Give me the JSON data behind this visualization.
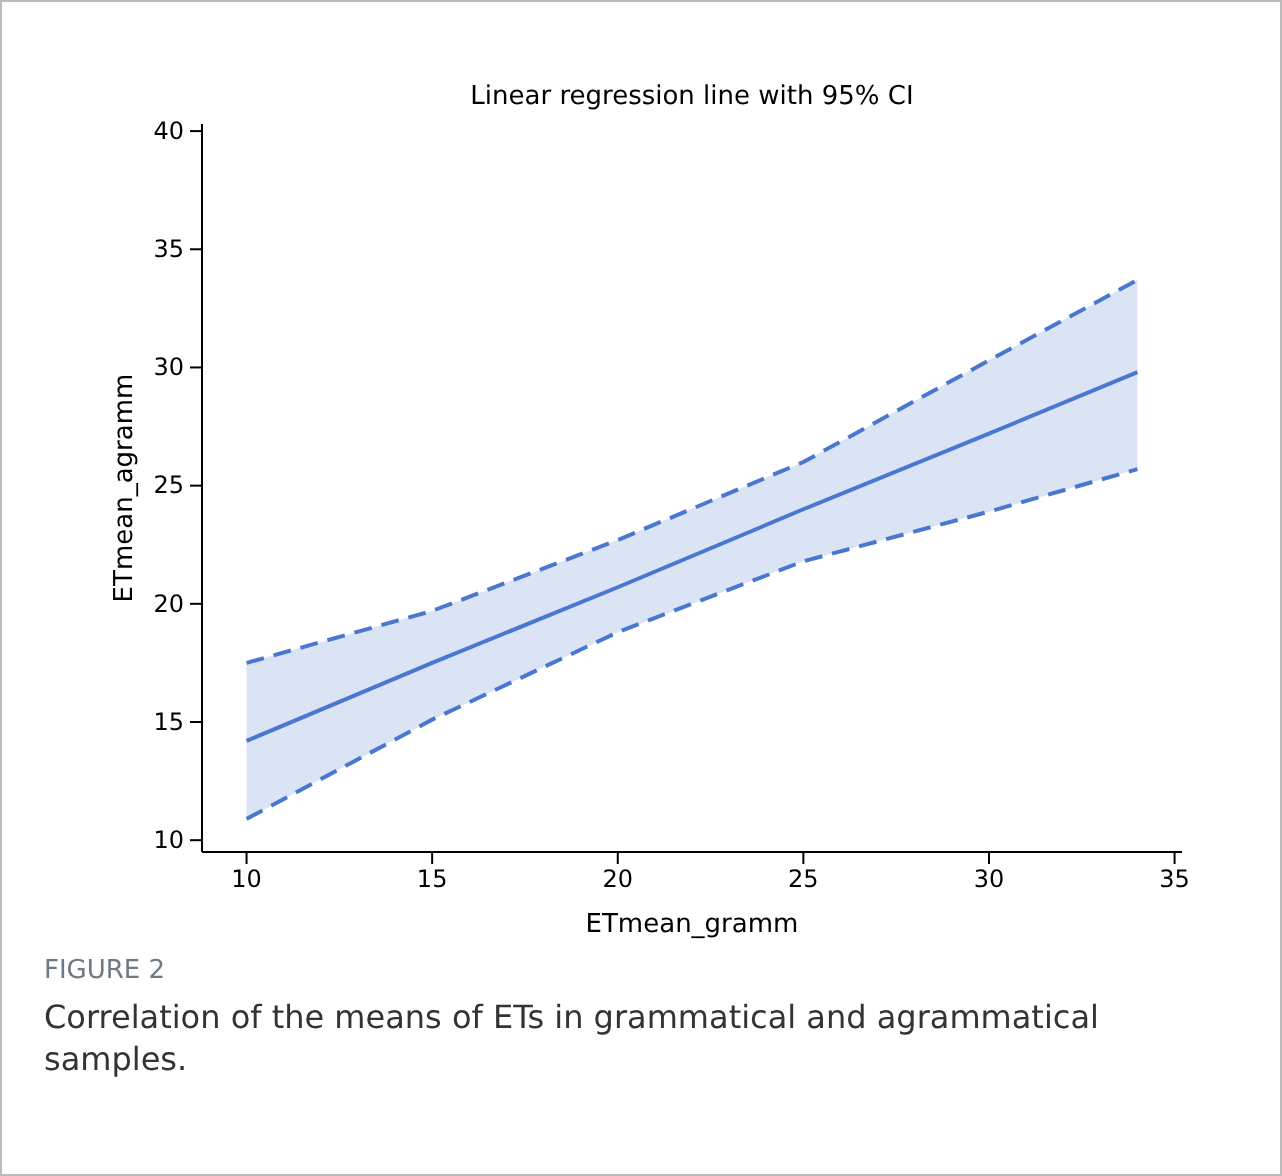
{
  "chart_data": {
    "type": "line",
    "title": "Linear regression line with 95% CI",
    "xlabel": "ETmean_gramm",
    "ylabel": "ETmean_agramm",
    "x": [
      10,
      15,
      20,
      25,
      30,
      34
    ],
    "series": [
      {
        "color": "#4a77cf",
        "values": [
          14.2,
          17.5,
          20.7,
          24.0,
          27.2,
          29.8
        ],
        "lower": [
          10.9,
          15.1,
          18.8,
          21.8,
          23.9,
          25.7
        ],
        "upper": [
          17.5,
          19.7,
          22.7,
          26.0,
          30.3,
          33.7
        ]
      },
      {
        "color": "#4a77cf",
        "line_style": "dashed",
        "values": [
          10.9,
          15.1,
          18.8,
          21.8,
          23.9,
          25.7
        ]
      },
      {
        "color": "#4a77cf",
        "line_style": "dashed",
        "values": [
          17.5,
          19.7,
          22.7,
          26.0,
          30.3,
          33.7
        ]
      }
    ],
    "xlim": [
      8.8,
      35.2
    ],
    "ylim": [
      9.5,
      40.3
    ],
    "xticks": [
      10,
      15,
      20,
      25,
      30,
      35
    ],
    "yticks": [
      10,
      15,
      20,
      25,
      30,
      35,
      40
    ],
    "grid": false,
    "marker": "none",
    "line_style": "solid",
    "annotations": [
      "FIGURE 2",
      "Correlation of the means of ETs in grammatical and agrammatical samples."
    ]
  }
}
